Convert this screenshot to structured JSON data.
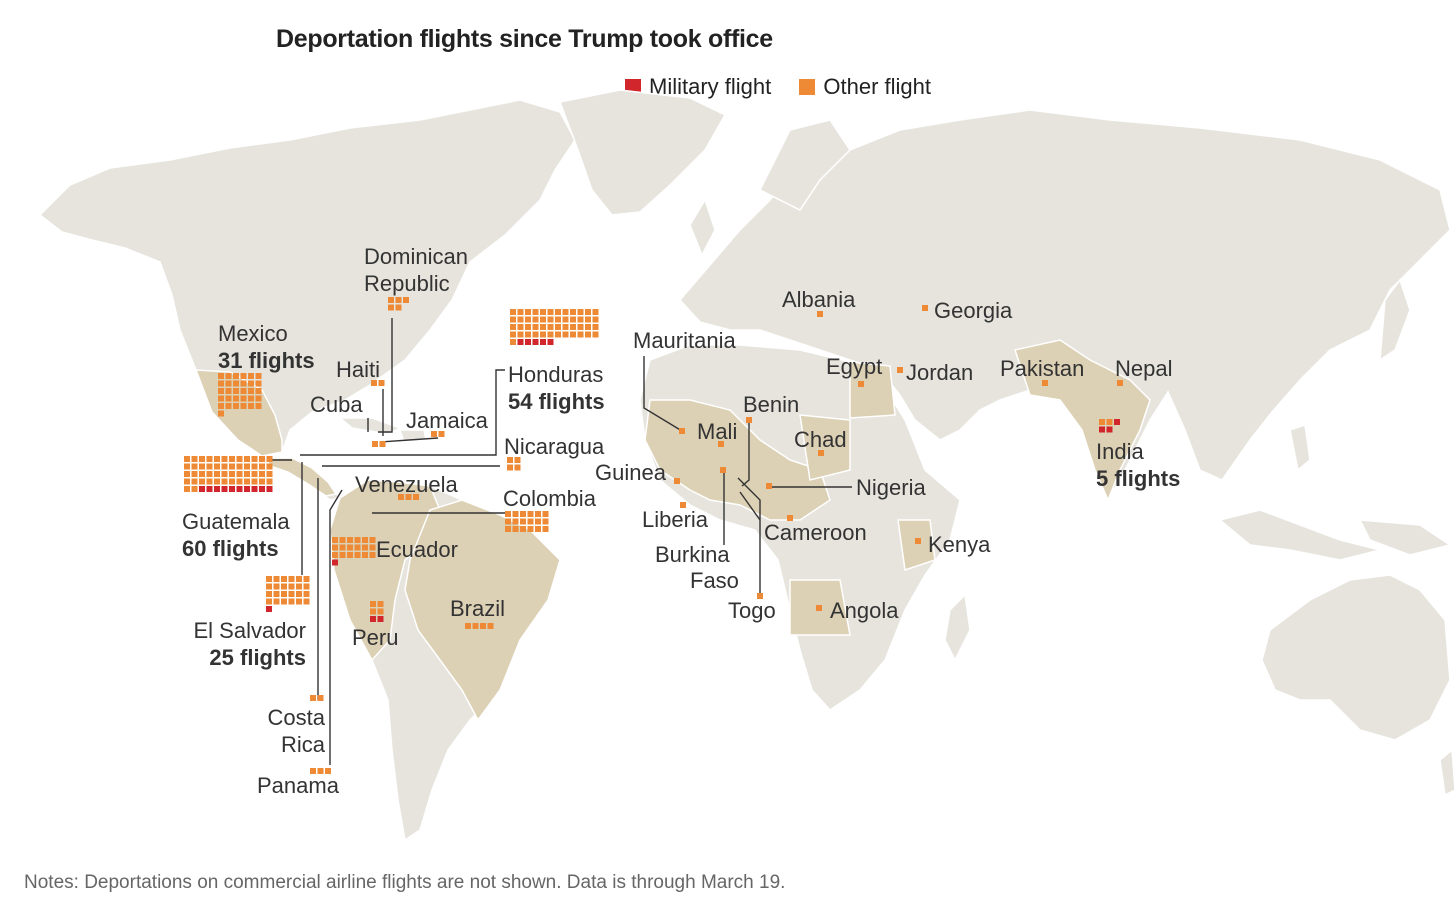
{
  "title": "Deportation flights since Trump took office",
  "legend": [
    {
      "label": "Military flight",
      "color": "#d1262b"
    },
    {
      "label": "Other flight",
      "color": "#ee8a36"
    }
  ],
  "notes": "Notes: Deportations on commercial airline flights are not shown. Data is through March 19.",
  "colors": {
    "land": "#e6e4dd",
    "highlight": "#dcd0b5",
    "border": "#ffffff",
    "military": "#d1262b",
    "other": "#ee8a36",
    "leader": "#333333"
  },
  "countries": [
    {
      "name": "Mexico",
      "subtitle": "31 flights",
      "military": 0,
      "other": 31
    },
    {
      "name": "Dominican Republic",
      "military": 0,
      "other": 5
    },
    {
      "name": "Haiti",
      "military": 0,
      "other": 2
    },
    {
      "name": "Cuba",
      "military": 0,
      "other": 2
    },
    {
      "name": "Jamaica",
      "military": 0,
      "other": 2
    },
    {
      "name": "Honduras",
      "subtitle": "54 flights",
      "military": 5,
      "other": 49
    },
    {
      "name": "Nicaragua",
      "military": 0,
      "other": 4
    },
    {
      "name": "Guatemala",
      "subtitle": "60 flights",
      "military": 10,
      "other": 50
    },
    {
      "name": "Venezuela",
      "military": 0,
      "other": 3
    },
    {
      "name": "Colombia",
      "military": 0,
      "other": 18
    },
    {
      "name": "Ecuador",
      "military": 1,
      "other": 18
    },
    {
      "name": "El Salvador",
      "subtitle": "25 flights",
      "military": 1,
      "other": 24
    },
    {
      "name": "Peru",
      "military": 2,
      "other": 4
    },
    {
      "name": "Brazil",
      "military": 0,
      "other": 4
    },
    {
      "name": "Costa Rica",
      "military": 0,
      "other": 2
    },
    {
      "name": "Panama",
      "military": 0,
      "other": 3
    },
    {
      "name": "Mauritania",
      "military": 0,
      "other": 1
    },
    {
      "name": "Mali",
      "military": 0,
      "other": 1
    },
    {
      "name": "Benin",
      "military": 0,
      "other": 1
    },
    {
      "name": "Chad",
      "military": 0,
      "other": 1
    },
    {
      "name": "Guinea",
      "military": 0,
      "other": 1
    },
    {
      "name": "Nigeria",
      "military": 0,
      "other": 1
    },
    {
      "name": "Liberia",
      "military": 0,
      "other": 1
    },
    {
      "name": "Cameroon",
      "military": 0,
      "other": 1
    },
    {
      "name": "Burkina Faso",
      "military": 0,
      "other": 1
    },
    {
      "name": "Togo",
      "military": 0,
      "other": 1
    },
    {
      "name": "Angola",
      "military": 0,
      "other": 1
    },
    {
      "name": "Kenya",
      "military": 0,
      "other": 1
    },
    {
      "name": "Albania",
      "military": 0,
      "other": 1
    },
    {
      "name": "Georgia",
      "military": 0,
      "other": 1
    },
    {
      "name": "Egypt",
      "military": 0,
      "other": 1
    },
    {
      "name": "Jordan",
      "military": 0,
      "other": 1
    },
    {
      "name": "Pakistan",
      "military": 0,
      "other": 1
    },
    {
      "name": "Nepal",
      "military": 0,
      "other": 1
    },
    {
      "name": "India",
      "subtitle": "5 flights",
      "military": 3,
      "other": 2
    }
  ]
}
